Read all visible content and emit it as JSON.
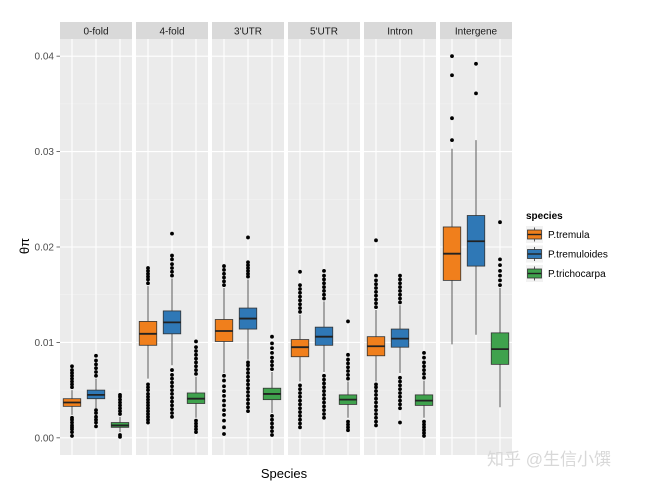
{
  "chart_data": {
    "type": "boxplot",
    "xlabel": "Species",
    "ylabel": "θπ",
    "ylim": [
      -0.0018,
      0.0418
    ],
    "yticks": [
      0.0,
      0.01,
      0.02,
      0.03,
      0.04
    ],
    "ytick_labels": [
      "0.00",
      "0.01",
      "0.02",
      "0.03",
      "0.04"
    ],
    "facets": [
      "0-fold",
      "4-fold",
      "3'UTR",
      "5'UTR",
      "Intron",
      "Intergene"
    ],
    "legend": {
      "title": "species",
      "position": "right",
      "entries": [
        {
          "name": "P.tremula",
          "color": "#f07f1c"
        },
        {
          "name": "P.tremuloides",
          "color": "#2f78b6"
        },
        {
          "name": "P.trichocarpa",
          "color": "#3fa24d"
        }
      ]
    },
    "series": [
      {
        "facet": "0-fold",
        "boxes": [
          {
            "species": "P.tremula",
            "q1": 0.0033,
            "median": 0.0037,
            "q3": 0.0041,
            "whisker_low": 0.0024,
            "whisker_high": 0.005,
            "outliers": [
              0.0002,
              0.0006,
              0.0009,
              0.0011,
              0.0013,
              0.0016,
              0.0019,
              0.0021,
              0.0053,
              0.0056,
              0.0059,
              0.0062,
              0.0065,
              0.0068,
              0.0071,
              0.0075
            ]
          },
          {
            "species": "P.tremuloides",
            "q1": 0.0041,
            "median": 0.0045,
            "q3": 0.005,
            "whisker_low": 0.0031,
            "whisker_high": 0.0062,
            "outliers": [
              0.0012,
              0.0016,
              0.0019,
              0.0022,
              0.0026,
              0.0029,
              0.0065,
              0.0069,
              0.0073,
              0.0077,
              0.0081,
              0.0086
            ]
          },
          {
            "species": "P.trichocarpa",
            "q1": 0.0011,
            "median": 0.0013,
            "q3": 0.0016,
            "whisker_low": 0.0006,
            "whisker_high": 0.0022,
            "outliers": [
              0.0001,
              0.0003,
              0.0025,
              0.0028,
              0.0031,
              0.0034,
              0.0037,
              0.004,
              0.0043,
              0.0045
            ]
          }
        ]
      },
      {
        "facet": "4-fold",
        "boxes": [
          {
            "species": "P.tremula",
            "q1": 0.0097,
            "median": 0.0109,
            "q3": 0.0122,
            "whisker_low": 0.0062,
            "whisker_high": 0.0159,
            "outliers": [
              0.0016,
              0.0019,
              0.0022,
              0.0025,
              0.0028,
              0.0031,
              0.0034,
              0.0037,
              0.004,
              0.0043,
              0.0046,
              0.005,
              0.0053,
              0.0056,
              0.0162,
              0.0166,
              0.0169,
              0.0172,
              0.0175,
              0.0178
            ]
          },
          {
            "species": "P.tremuloides",
            "q1": 0.0109,
            "median": 0.0121,
            "q3": 0.0133,
            "whisker_low": 0.0076,
            "whisker_high": 0.0167,
            "outliers": [
              0.0022,
              0.0026,
              0.003,
              0.0034,
              0.0038,
              0.0042,
              0.0046,
              0.005,
              0.0054,
              0.0058,
              0.0062,
              0.0066,
              0.0071,
              0.017,
              0.0174,
              0.0178,
              0.0182,
              0.0187,
              0.0191,
              0.0214
            ]
          },
          {
            "species": "P.trichocarpa",
            "q1": 0.0036,
            "median": 0.0041,
            "q3": 0.0047,
            "whisker_low": 0.0021,
            "whisker_high": 0.0064,
            "outliers": [
              0.0006,
              0.0009,
              0.0012,
              0.0015,
              0.0018,
              0.0067,
              0.0071,
              0.0075,
              0.0079,
              0.0083,
              0.0087,
              0.0091,
              0.0095,
              0.0101
            ]
          }
        ]
      },
      {
        "facet": "3'UTR",
        "boxes": [
          {
            "species": "P.tremula",
            "q1": 0.0101,
            "median": 0.0112,
            "q3": 0.0124,
            "whisker_low": 0.0068,
            "whisker_high": 0.0157,
            "outliers": [
              0.0004,
              0.0011,
              0.0018,
              0.0024,
              0.0029,
              0.0034,
              0.0039,
              0.0044,
              0.0049,
              0.0054,
              0.006,
              0.0065,
              0.016,
              0.0164,
              0.0168,
              0.0172,
              0.0176,
              0.018
            ]
          },
          {
            "species": "P.tremuloides",
            "q1": 0.0114,
            "median": 0.0125,
            "q3": 0.0136,
            "whisker_low": 0.0082,
            "whisker_high": 0.0166,
            "outliers": [
              0.0028,
              0.0032,
              0.0036,
              0.004,
              0.0044,
              0.0048,
              0.0052,
              0.0056,
              0.006,
              0.0064,
              0.0068,
              0.0072,
              0.0076,
              0.0079,
              0.0169,
              0.0172,
              0.0175,
              0.0178,
              0.0181,
              0.0184,
              0.021
            ]
          },
          {
            "species": "P.trichocarpa",
            "q1": 0.004,
            "median": 0.0046,
            "q3": 0.0052,
            "whisker_low": 0.0026,
            "whisker_high": 0.0069,
            "outliers": [
              0.0003,
              0.0007,
              0.0011,
              0.0015,
              0.0019,
              0.0023,
              0.0072,
              0.0076,
              0.008,
              0.0084,
              0.0089,
              0.0094,
              0.0099,
              0.0106
            ]
          }
        ]
      },
      {
        "facet": "5'UTR",
        "boxes": [
          {
            "species": "P.tremula",
            "q1": 0.0085,
            "median": 0.0095,
            "q3": 0.0103,
            "whisker_low": 0.0059,
            "whisker_high": 0.0129,
            "outliers": [
              0.0011,
              0.0015,
              0.0019,
              0.0023,
              0.0027,
              0.0031,
              0.0035,
              0.0039,
              0.0043,
              0.0047,
              0.0051,
              0.0055,
              0.0132,
              0.0136,
              0.014,
              0.0144,
              0.0148,
              0.0152,
              0.0156,
              0.016,
              0.0174
            ]
          },
          {
            "species": "P.tremuloides",
            "q1": 0.0097,
            "median": 0.0106,
            "q3": 0.0116,
            "whisker_low": 0.0069,
            "whisker_high": 0.0143,
            "outliers": [
              0.0021,
              0.0025,
              0.0029,
              0.0033,
              0.0037,
              0.0041,
              0.0045,
              0.0049,
              0.0053,
              0.0057,
              0.0061,
              0.0065,
              0.0146,
              0.015,
              0.0154,
              0.0158,
              0.0162,
              0.0166,
              0.017,
              0.0175
            ]
          },
          {
            "species": "P.trichocarpa",
            "q1": 0.0035,
            "median": 0.004,
            "q3": 0.0045,
            "whisker_low": 0.0021,
            "whisker_high": 0.0059,
            "outliers": [
              0.0008,
              0.0011,
              0.0014,
              0.0017,
              0.0062,
              0.0066,
              0.007,
              0.0074,
              0.0078,
              0.0082,
              0.0087,
              0.0122
            ]
          }
        ]
      },
      {
        "facet": "Intron",
        "boxes": [
          {
            "species": "P.tremula",
            "q1": 0.0086,
            "median": 0.0096,
            "q3": 0.0106,
            "whisker_low": 0.0059,
            "whisker_high": 0.0134,
            "outliers": [
              0.0013,
              0.0017,
              0.0021,
              0.0025,
              0.0029,
              0.0033,
              0.0037,
              0.0041,
              0.0045,
              0.0049,
              0.0053,
              0.0056,
              0.0137,
              0.0141,
              0.0145,
              0.0149,
              0.0153,
              0.0157,
              0.0161,
              0.0165,
              0.017,
              0.0207
            ]
          },
          {
            "species": "P.tremuloides",
            "q1": 0.0095,
            "median": 0.0104,
            "q3": 0.0114,
            "whisker_low": 0.0068,
            "whisker_high": 0.0139,
            "outliers": [
              0.0016,
              0.0031,
              0.0035,
              0.0039,
              0.0043,
              0.0047,
              0.0051,
              0.0055,
              0.0059,
              0.0063,
              0.0142,
              0.0146,
              0.015,
              0.0154,
              0.0158,
              0.0162,
              0.0166,
              0.017
            ]
          },
          {
            "species": "P.trichocarpa",
            "q1": 0.0034,
            "median": 0.0039,
            "q3": 0.0045,
            "whisker_low": 0.0021,
            "whisker_high": 0.006,
            "outliers": [
              0.0002,
              0.0005,
              0.0008,
              0.0011,
              0.0014,
              0.0017,
              0.0063,
              0.0067,
              0.0071,
              0.0075,
              0.0079,
              0.0084,
              0.0089
            ]
          }
        ]
      },
      {
        "facet": "Intergene",
        "boxes": [
          {
            "species": "P.tremula",
            "q1": 0.0165,
            "median": 0.0193,
            "q3": 0.0221,
            "whisker_low": 0.0098,
            "whisker_high": 0.0303,
            "outliers": [
              0.0312,
              0.0335,
              0.038,
              0.04
            ]
          },
          {
            "species": "P.tremuloides",
            "q1": 0.018,
            "median": 0.0206,
            "q3": 0.0233,
            "whisker_low": 0.0108,
            "whisker_high": 0.0312,
            "outliers": [
              0.0361,
              0.0392
            ]
          },
          {
            "species": "P.trichocarpa",
            "q1": 0.0077,
            "median": 0.0093,
            "q3": 0.011,
            "whisker_low": 0.0032,
            "whisker_high": 0.0157,
            "outliers": [
              0.016,
              0.0165,
              0.017,
              0.0175,
              0.0181,
              0.0187,
              0.0226
            ]
          }
        ]
      }
    ]
  },
  "watermark": "知乎 @生信小馔"
}
